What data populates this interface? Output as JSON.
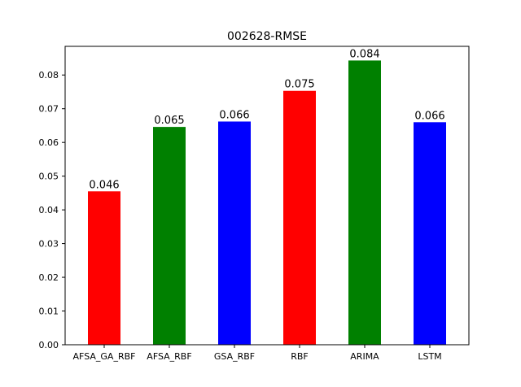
{
  "chart_data": {
    "type": "bar",
    "title": "002628-RMSE",
    "xlabel": "",
    "ylabel": "",
    "categories": [
      "AFSA_GA_RBF",
      "AFSA_RBF",
      "GSA_RBF",
      "RBF",
      "ARIMA",
      "LSTM"
    ],
    "values": [
      0.0455,
      0.0646,
      0.0662,
      0.0753,
      0.0843,
      0.066
    ],
    "data_labels": [
      "0.046",
      "0.065",
      "0.066",
      "0.075",
      "0.084",
      "0.066"
    ],
    "colors": [
      "#ff0000",
      "#008000",
      "#0000ff",
      "#ff0000",
      "#008000",
      "#0000ff"
    ],
    "ylim": [
      0,
      0.0885
    ],
    "yticks": [
      0.0,
      0.01,
      0.02,
      0.03,
      0.04,
      0.05,
      0.06,
      0.07,
      0.08
    ],
    "ytick_labels": [
      "0.00",
      "0.01",
      "0.02",
      "0.03",
      "0.04",
      "0.05",
      "0.06",
      "0.07",
      "0.08"
    ],
    "grid": false,
    "legend": "none"
  }
}
